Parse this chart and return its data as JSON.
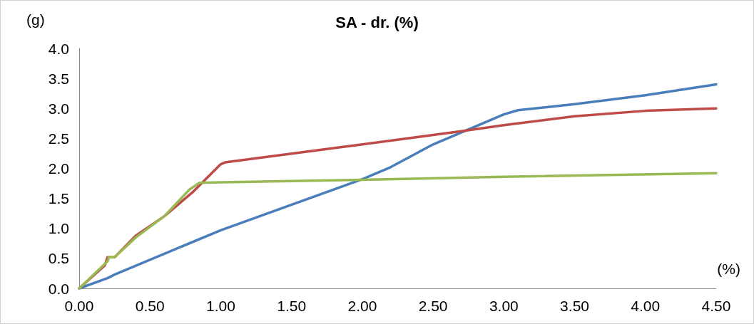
{
  "chart_data": {
    "type": "line",
    "title": "SA - dr. (%)",
    "xlabel": "(%)",
    "ylabel": "(g)",
    "xlim": [
      0,
      4.5
    ],
    "xticks": [
      {
        "value": 0,
        "label": "0.00"
      },
      {
        "value": 0.5,
        "label": "0.50"
      },
      {
        "value": 1,
        "label": "1.00"
      },
      {
        "value": 1.5,
        "label": "1.50"
      },
      {
        "value": 2,
        "label": "2.00"
      },
      {
        "value": 2.5,
        "label": "2.50"
      },
      {
        "value": 3,
        "label": "3.00"
      },
      {
        "value": 3.5,
        "label": "3.50"
      },
      {
        "value": 4,
        "label": "4.00"
      },
      {
        "value": 4.5,
        "label": "4.50"
      }
    ],
    "ylim": [
      0,
      4
    ],
    "yticks": [
      {
        "value": 0,
        "label": "0.0"
      },
      {
        "value": 0.5,
        "label": "0.5"
      },
      {
        "value": 1,
        "label": "1.0"
      },
      {
        "value": 1.5,
        "label": "1.5"
      },
      {
        "value": 2,
        "label": "2.0"
      },
      {
        "value": 2.5,
        "label": "2.5"
      },
      {
        "value": 3,
        "label": "3.0"
      },
      {
        "value": 3.5,
        "label": "3.5"
      },
      {
        "value": 4,
        "label": "4.0"
      }
    ],
    "grid": false,
    "marker": "none",
    "line_style": "solid",
    "series": [
      {
        "color": "#4a7ebb",
        "x": [
          0,
          0.2,
          0.25,
          1.0,
          2.0,
          2.2,
          2.5,
          3.0,
          3.1,
          3.5,
          4.0,
          4.5
        ],
        "values": [
          0,
          0.17,
          0.23,
          0.97,
          1.82,
          2.02,
          2.4,
          2.9,
          2.97,
          3.07,
          3.22,
          3.4
        ]
      },
      {
        "color": "#be4b48",
        "x": [
          0,
          0.18,
          0.2,
          0.25,
          0.4,
          0.6,
          0.8,
          1.0,
          1.03,
          2.0,
          2.7,
          3.0,
          3.5,
          4.0,
          4.5
        ],
        "values": [
          0,
          0.38,
          0.52,
          0.52,
          0.88,
          1.2,
          1.6,
          2.07,
          2.1,
          2.4,
          2.62,
          2.72,
          2.87,
          2.96,
          3.0
        ]
      },
      {
        "color": "#98b954",
        "x": [
          0,
          0.2,
          0.21,
          0.25,
          0.4,
          0.6,
          0.78,
          0.85,
          1.0,
          2.0,
          3.0,
          4.5
        ],
        "values": [
          0,
          0.45,
          0.52,
          0.52,
          0.85,
          1.2,
          1.65,
          1.76,
          1.77,
          1.81,
          1.86,
          1.92
        ]
      }
    ]
  }
}
